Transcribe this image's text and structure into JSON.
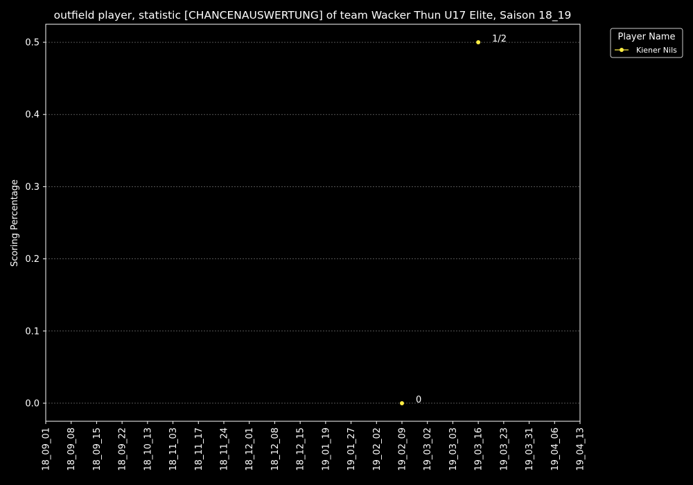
{
  "chart_data": {
    "type": "scatter",
    "title": "outfield player, statistic [CHANCENAUSWERTUNG] of team Wacker Thun U17 Elite, Saison 18_19",
    "xlabel": "",
    "ylabel": "Scoring Percentage",
    "x_categories": [
      "18_09_01",
      "18_09_08",
      "18_09_15",
      "18_09_22",
      "18_10_13",
      "18_11_03",
      "18_11_17",
      "18_11_24",
      "18_12_01",
      "18_12_08",
      "18_12_15",
      "19_01_19",
      "19_01_27",
      "19_02_02",
      "19_02_09",
      "19_03_02",
      "19_03_03",
      "19_03_16",
      "19_03_23",
      "19_03_31",
      "19_04_06",
      "19_04_13"
    ],
    "y_ticks": [
      0.0,
      0.1,
      0.2,
      0.3,
      0.4,
      0.5
    ],
    "y_tick_labels": [
      "0.0",
      "0.1",
      "0.2",
      "0.3",
      "0.4",
      "0.5"
    ],
    "ylim": [
      -0.025,
      0.525
    ],
    "grid": true,
    "grid_axis": "y",
    "legend": {
      "title": "Player Name",
      "placement": "outside-top-right"
    },
    "series": [
      {
        "name": "Kiener Nils",
        "color": "#ffee44",
        "points": [
          {
            "x": "19_02_09",
            "y": 0.0,
            "label": "0"
          },
          {
            "x": "19_03_16",
            "y": 0.5,
            "label": "1/2"
          }
        ]
      }
    ],
    "colors": {
      "background": "#000000",
      "foreground": "#ffffff",
      "grid": "#888888"
    }
  }
}
